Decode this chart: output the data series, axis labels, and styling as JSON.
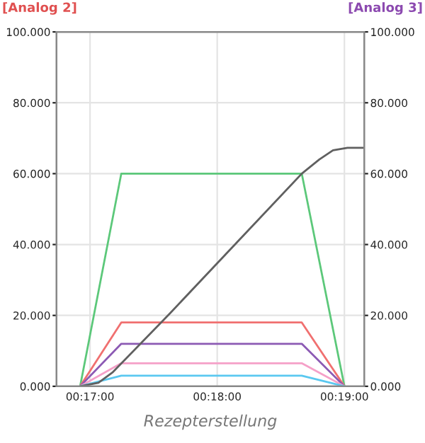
{
  "chart_data": {
    "type": "line",
    "xlabel": "Rezepterstellung",
    "ylabel": "[Analog 2]",
    "y2label": "[Analog 3]",
    "x": [
      0.282,
      0.2874,
      0.3111,
      0.3167
    ],
    "series": [
      {
        "color": "#5cc87a",
        "values": [
          0,
          60,
          60,
          0
        ]
      },
      {
        "color": "#f07070",
        "values": [
          0,
          18,
          18,
          0
        ]
      },
      {
        "color": "#8c5ab4",
        "values": [
          0,
          12,
          12,
          0
        ]
      },
      {
        "color": "#f5a0c8",
        "values": [
          0,
          6.5,
          6.5,
          0
        ]
      },
      {
        "color": "#5ac8f0",
        "values": [
          0,
          3,
          3,
          0
        ]
      },
      {
        "color": "#606060",
        "x": [
          0.282,
          0.2844,
          0.2863,
          0.2938,
          0.3111,
          0.3134,
          0.3152,
          0.3171,
          0.3193
        ],
        "values": [
          0,
          1,
          4,
          20.6,
          60,
          64,
          66.6,
          67.3,
          67.3
        ]
      }
    ],
    "xlim": [
      0.2789,
      0.3193
    ],
    "xticks": [
      {
        "value": 0.2833,
        "label": "00:17:00"
      },
      {
        "value": 0.3,
        "label": "00:18:00"
      },
      {
        "value": 0.3167,
        "label": "00:19:00"
      }
    ],
    "ylim": [
      0,
      100
    ],
    "yticks": [
      {
        "value": 0,
        "label": "0.000"
      },
      {
        "value": 20,
        "label": "20.000"
      },
      {
        "value": 40,
        "label": "40.000"
      },
      {
        "value": 60,
        "label": "60.000"
      },
      {
        "value": 80,
        "label": "80.000"
      },
      {
        "value": 100,
        "label": "100.000"
      }
    ],
    "y2lim": [
      0,
      100
    ],
    "y2ticks": [
      {
        "value": 0,
        "label": "0.000"
      },
      {
        "value": 20,
        "label": "20.000"
      },
      {
        "value": 40,
        "label": "40.000"
      },
      {
        "value": 60,
        "label": "60.000"
      },
      {
        "value": 80,
        "label": "80.000"
      },
      {
        "value": 100,
        "label": "100.000"
      }
    ],
    "grid": true
  }
}
